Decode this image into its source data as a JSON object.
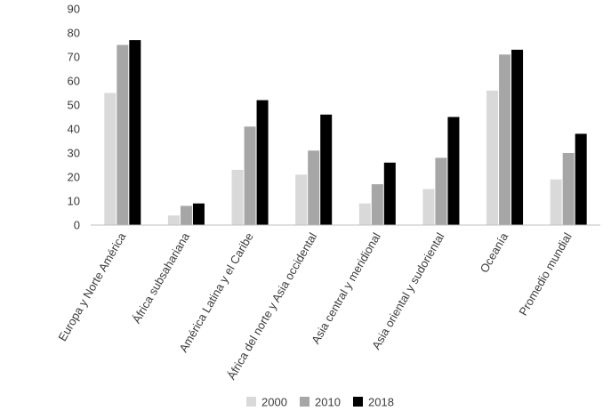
{
  "chart_data": {
    "type": "bar",
    "categories": [
      "Europa y Norte América",
      "África subsahariana",
      "América Latina y el Caribe",
      "África del norte y Asia occidental",
      "Asia central y meridional",
      "Asia oriental y sudoriental",
      "Oceanía",
      "Promedio mundial"
    ],
    "series": [
      {
        "name": "2000",
        "color": "#d9d9d9",
        "values": [
          55,
          4,
          23,
          21,
          9,
          15,
          56,
          19
        ]
      },
      {
        "name": "2010",
        "color": "#a6a6a6",
        "values": [
          75,
          8,
          41,
          31,
          17,
          28,
          71,
          30
        ]
      },
      {
        "name": "2018",
        "color": "#000000",
        "values": [
          77,
          9,
          52,
          46,
          26,
          45,
          73,
          38
        ]
      }
    ],
    "ylim": [
      0,
      90
    ],
    "yticks": [
      0,
      10,
      20,
      30,
      40,
      50,
      60,
      70,
      80,
      90
    ],
    "grid": false,
    "legend_position": "bottom-center",
    "title": "",
    "xlabel": "",
    "ylabel": ""
  }
}
